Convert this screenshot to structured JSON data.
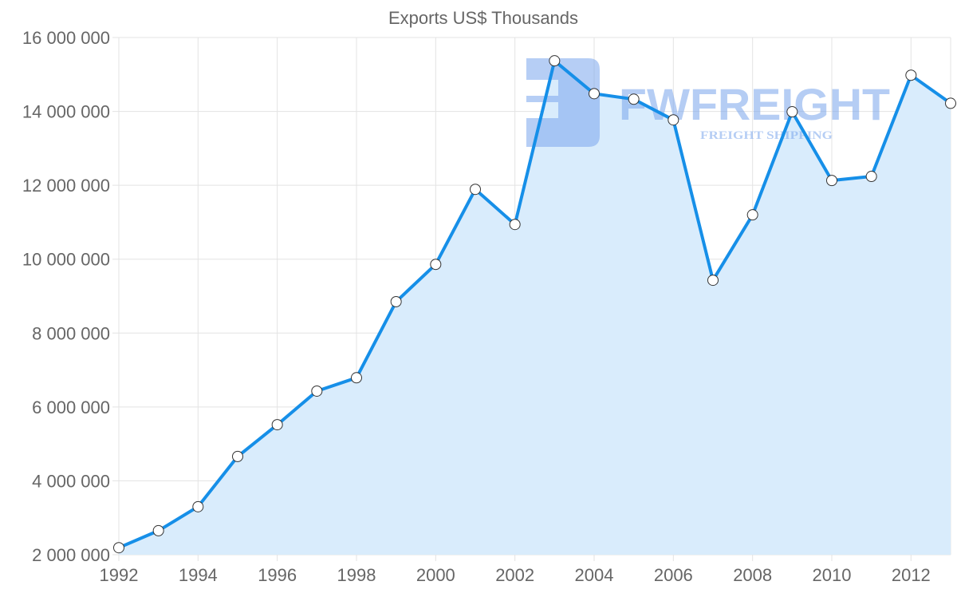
{
  "chart_data": {
    "type": "area",
    "title": "Exports US$ Thousands",
    "xlabel": "",
    "ylabel": "",
    "x": [
      1992,
      1993,
      1994,
      1995,
      1996,
      1997,
      1998,
      1999,
      2000,
      2001,
      2002,
      2003,
      2004,
      2005,
      2006,
      2007,
      2008,
      2009,
      2010,
      2011,
      2012,
      2013
    ],
    "series": [
      {
        "name": "Exports US$ Thousands",
        "values": [
          2190000,
          2650000,
          3300000,
          4660000,
          5520000,
          6430000,
          6790000,
          8850000,
          9860000,
          11890000,
          10940000,
          15370000,
          14480000,
          14330000,
          13770000,
          9430000,
          11200000,
          13990000,
          12130000,
          12240000,
          14980000,
          14220000
        ]
      }
    ],
    "ylim": [
      2000000,
      16000000
    ],
    "xlim": [
      1992,
      2013
    ],
    "yticks": [
      2000000,
      4000000,
      6000000,
      8000000,
      10000000,
      12000000,
      14000000,
      16000000
    ],
    "ytick_labels": [
      "2 000 000",
      "4 000 000",
      "6 000 000",
      "8 000 000",
      "10 000 000",
      "12 000 000",
      "14 000 000",
      "16 000 000"
    ],
    "xticks": [
      1992,
      1994,
      1996,
      1998,
      2000,
      2002,
      2004,
      2006,
      2008,
      2010,
      2012
    ],
    "xtick_labels": [
      "1992",
      "1994",
      "1996",
      "1998",
      "2000",
      "2002",
      "2004",
      "2006",
      "2008",
      "2010",
      "2012"
    ],
    "grid": true,
    "legend": "none",
    "colors": {
      "line": "#168fe8",
      "fill": "#d9ecfc",
      "point_fill": "#ffffff",
      "point_stroke": "#333333",
      "grid": "#e3e3e3",
      "text": "#666666"
    }
  },
  "watermark": {
    "brand": "FWFREIGHT",
    "tagline": "FREIGHT SHIPPING",
    "color": "#7aa6ec"
  }
}
